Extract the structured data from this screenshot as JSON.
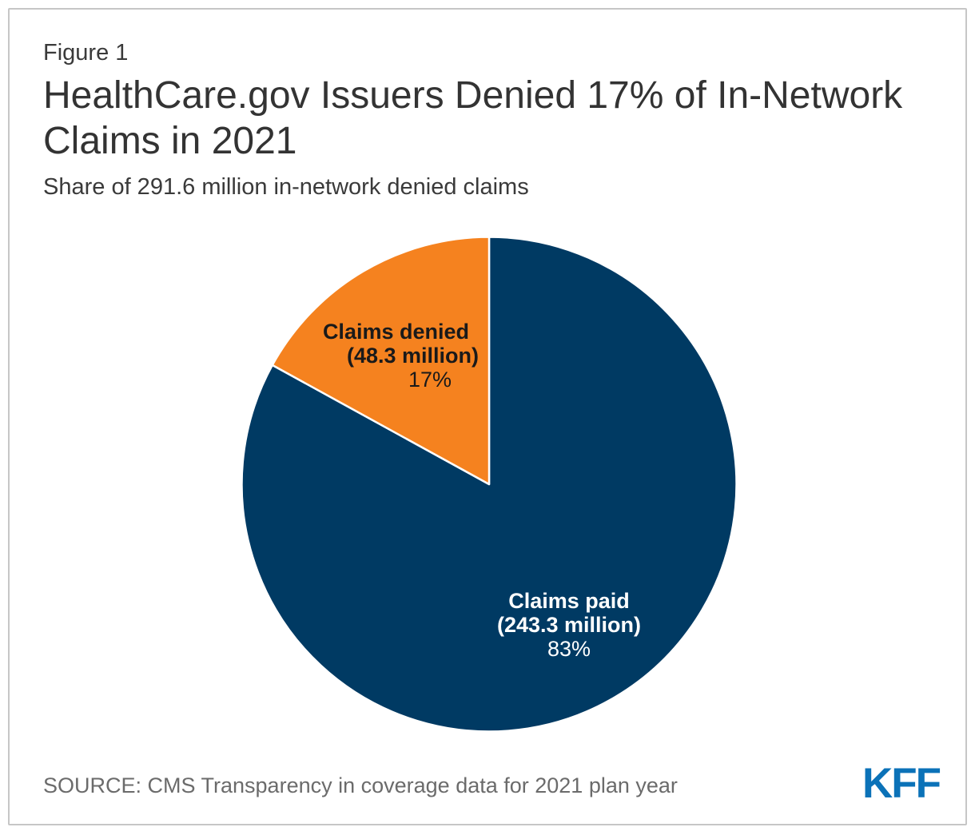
{
  "header": {
    "figure_label": "Figure 1",
    "title_lines": [
      "HealthCare.gov Issuers Denied 17% of In-Network",
      "Claims in 2021"
    ],
    "title_full": "HealthCare.gov Issuers Denied 17% of In-Network Claims in 2021",
    "subtitle": "Share of 291.6 million in-network denied claims"
  },
  "chart_data": {
    "type": "pie",
    "title": "HealthCare.gov Issuers Denied 17% of In-Network Claims in 2021",
    "subtitle": "Share of 291.6 million in-network denied claims",
    "units": "millions of in-network claims",
    "total_value_millions": 291.6,
    "direction": "clockwise-from-top",
    "legend": "none",
    "slices": [
      {
        "label": "Claims paid",
        "detail": "(243.3 million)",
        "value_millions": 243.3,
        "percent": 83,
        "percent_label": "83%",
        "color": "#003a63",
        "label_color": "#ffffff"
      },
      {
        "label": "Claims denied",
        "detail": "(48.3 million)",
        "value_millions": 48.3,
        "percent": 17,
        "percent_label": "17%",
        "color": "#f5821f",
        "label_color": "#1a1a1a"
      }
    ]
  },
  "footer": {
    "source": "SOURCE: CMS Transparency in coverage data for 2021 plan year",
    "logo_text": "KFF",
    "logo_color": "#0b72b8"
  },
  "colors": {
    "paid_navy": "#003a63",
    "denied_orange": "#f5821f",
    "slice_divider": "#ffffff",
    "card_border": "#c6c6c6",
    "title_text": "#333333",
    "source_text": "#6b6b6b"
  }
}
